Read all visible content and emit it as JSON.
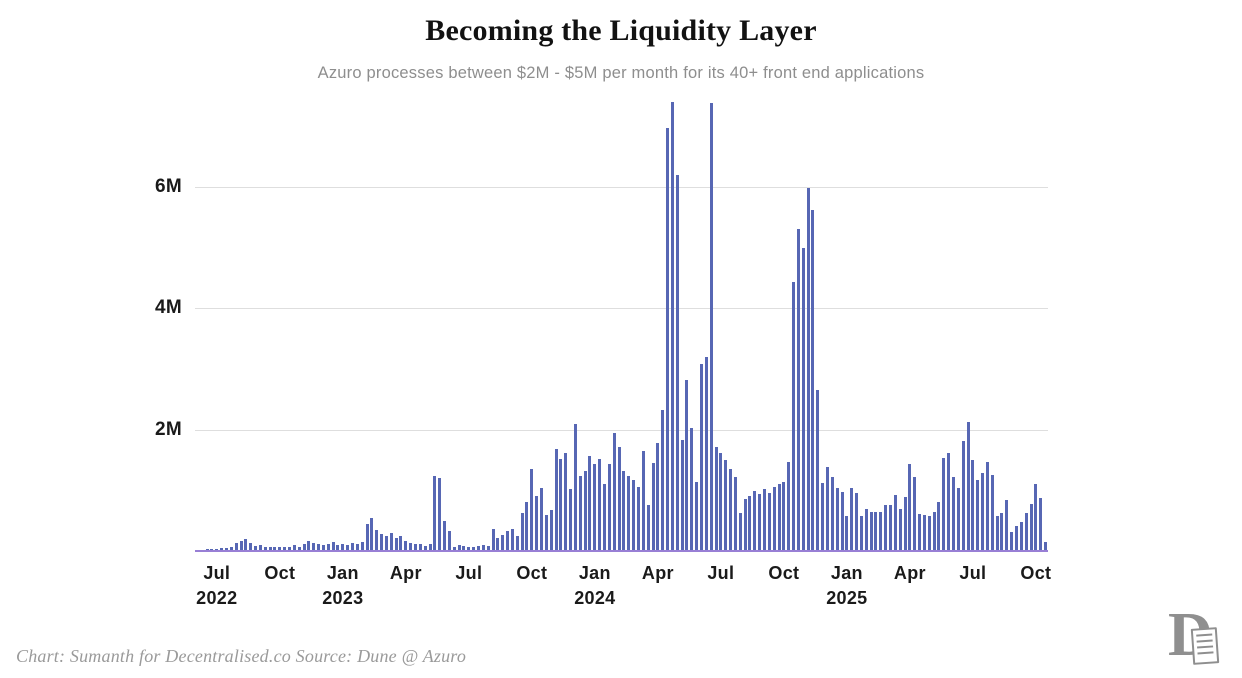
{
  "header": {
    "title": "Becoming the Liquidity Layer",
    "subtitle": "Azuro processes between $2M - $5M per month for its 40+ front end applications"
  },
  "footer": {
    "credit": "Chart: Sumanth for Decentralised.co Source: Dune @ Azuro"
  },
  "logo": {
    "letter": "D",
    "name": "decentralised-co-logo"
  },
  "colors": {
    "bar": "#5767b4",
    "baseline": "#987fd5",
    "gridline": "#dedede",
    "title": "#121212",
    "subtitle": "#8e8e8e",
    "axis_text": "#1a1a1a",
    "footer_text": "#9a9a9a",
    "logo_gray": "#8f8f8f"
  },
  "chart_data": {
    "type": "bar",
    "title": "Becoming the Liquidity Layer",
    "subtitle": "Azuro processes between $2M - $5M per month for its 40+ front end applications",
    "xlabel": "",
    "ylabel": "",
    "unit": "USD millions per week",
    "x_interval": "weekly",
    "x_start_approx": "2022-06",
    "x_end_approx": "2025-10",
    "grid": "horizontal",
    "legend": "none",
    "ylim": [
      0,
      7.43
    ],
    "yticks": [
      {
        "label": "2M",
        "value": 2
      },
      {
        "label": "4M",
        "value": 4
      },
      {
        "label": "6M",
        "value": 6
      }
    ],
    "xticks": [
      {
        "label": "Jul",
        "year": "2022",
        "index": 4
      },
      {
        "label": "Oct",
        "year": "",
        "index": 17
      },
      {
        "label": "Jan",
        "year": "2023",
        "index": 30
      },
      {
        "label": "Apr",
        "year": "",
        "index": 43
      },
      {
        "label": "Jul",
        "year": "",
        "index": 56
      },
      {
        "label": "Oct",
        "year": "",
        "index": 69
      },
      {
        "label": "Jan",
        "year": "2024",
        "index": 82
      },
      {
        "label": "Apr",
        "year": "",
        "index": 95
      },
      {
        "label": "Jul",
        "year": "",
        "index": 108
      },
      {
        "label": "Oct",
        "year": "",
        "index": 121
      },
      {
        "label": "Jan",
        "year": "2025",
        "index": 134
      },
      {
        "label": "Apr",
        "year": "",
        "index": 147
      },
      {
        "label": "Jul",
        "year": "",
        "index": 160
      },
      {
        "label": "Oct",
        "year": "",
        "index": 173
      }
    ],
    "values_millions": [
      0.02,
      0.02,
      0.03,
      0.03,
      0.04,
      0.05,
      0.05,
      0.06,
      0.13,
      0.17,
      0.19,
      0.13,
      0.09,
      0.1,
      0.07,
      0.07,
      0.06,
      0.06,
      0.06,
      0.07,
      0.1,
      0.07,
      0.11,
      0.16,
      0.14,
      0.12,
      0.1,
      0.12,
      0.15,
      0.1,
      0.12,
      0.1,
      0.14,
      0.12,
      0.15,
      0.45,
      0.55,
      0.35,
      0.28,
      0.25,
      0.3,
      0.22,
      0.25,
      0.16,
      0.14,
      0.12,
      0.11,
      0.09,
      0.12,
      1.24,
      1.21,
      0.49,
      0.33,
      0.06,
      0.1,
      0.08,
      0.06,
      0.06,
      0.08,
      0.1,
      0.08,
      0.36,
      0.22,
      0.27,
      0.33,
      0.36,
      0.25,
      0.63,
      0.8,
      1.35,
      0.91,
      1.04,
      0.6,
      0.68,
      1.68,
      1.51,
      1.62,
      1.02,
      2.09,
      1.24,
      1.32,
      1.57,
      1.43,
      1.52,
      1.1,
      1.44,
      1.94,
      1.72,
      1.31,
      1.24,
      1.17,
      1.06,
      1.64,
      0.76,
      1.45,
      1.78,
      2.33,
      6.97,
      7.4,
      6.2,
      1.83,
      2.81,
      2.03,
      1.14,
      3.08,
      3.19,
      7.38,
      1.72,
      1.61,
      1.5,
      1.35,
      1.22,
      0.63,
      0.85,
      0.91,
      0.99,
      0.94,
      1.02,
      0.96,
      1.05,
      1.1,
      1.14,
      1.46,
      4.44,
      5.3,
      4.99,
      5.98,
      5.62,
      2.65,
      1.12,
      1.39,
      1.22,
      1.03,
      0.98,
      0.57,
      1.03,
      0.95,
      0.58,
      0.69,
      0.64,
      0.65,
      0.65,
      0.75,
      0.76,
      0.92,
      0.69,
      0.89,
      1.44,
      1.22,
      0.61,
      0.59,
      0.58,
      0.64,
      0.81,
      1.53,
      1.61,
      1.22,
      1.03,
      1.81,
      2.13,
      1.5,
      1.17,
      1.28,
      1.47,
      1.25,
      0.58,
      0.63,
      0.84,
      0.31,
      0.42,
      0.47,
      0.62,
      0.78,
      1.1,
      0.88,
      0.15
    ]
  }
}
